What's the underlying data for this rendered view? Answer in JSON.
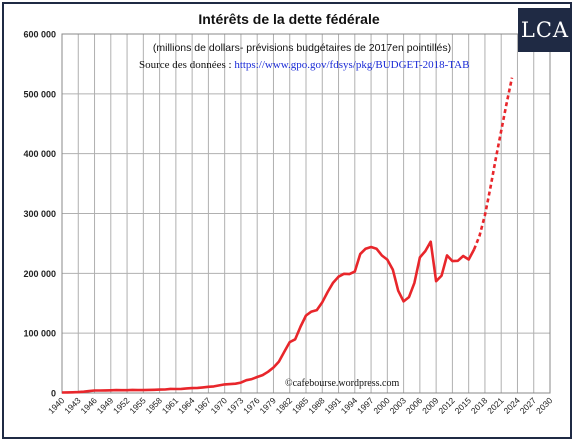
{
  "logo": {
    "text": "LCA"
  },
  "colors": {
    "frame": "#1f2a44",
    "series": "#e8262b",
    "link": "#1a2bd6",
    "grid": "#b0b0b0"
  },
  "chart_data": {
    "type": "line",
    "title": "Intérêts de la dette fédérale",
    "subtitle": "(millions de dollars- prévisions budgétaires de 2017en pointillés)",
    "source_prefix": "Source des données :",
    "source_url": "https://www.gpo.gov/fdsys/pkg/BUDGET-2018-TAB",
    "annotation": "©cafebourse.wordpress.com",
    "xlabel": "",
    "ylabel": "",
    "xlim": [
      1940,
      2030
    ],
    "ylim": [
      0,
      600000
    ],
    "grid": true,
    "x_ticks": [
      1940,
      1943,
      1946,
      1949,
      1952,
      1955,
      1958,
      1961,
      1964,
      1967,
      1970,
      1973,
      1976,
      1979,
      1982,
      1985,
      1988,
      1991,
      1994,
      1997,
      2000,
      2003,
      2006,
      2009,
      2012,
      2015,
      2018,
      2021,
      2024,
      2027,
      2030
    ],
    "y_ticks": [
      {
        "value": 0,
        "label": "0"
      },
      {
        "value": 100000,
        "label": "100 000"
      },
      {
        "value": 200000,
        "label": "200 000"
      },
      {
        "value": 300000,
        "label": "300 000"
      },
      {
        "value": 400000,
        "label": "400 000"
      },
      {
        "value": 500000,
        "label": "500 000"
      },
      {
        "value": 600000,
        "label": "600 000"
      }
    ],
    "series": [
      {
        "style": "solid",
        "points": [
          [
            1940,
            900
          ],
          [
            1941,
            1000
          ],
          [
            1942,
            1100
          ],
          [
            1943,
            1500
          ],
          [
            1944,
            2100
          ],
          [
            1945,
            3100
          ],
          [
            1946,
            4100
          ],
          [
            1947,
            4200
          ],
          [
            1948,
            4300
          ],
          [
            1949,
            4500
          ],
          [
            1950,
            4800
          ],
          [
            1951,
            4700
          ],
          [
            1952,
            4700
          ],
          [
            1953,
            5100
          ],
          [
            1954,
            4800
          ],
          [
            1955,
            4900
          ],
          [
            1956,
            5100
          ],
          [
            1957,
            5400
          ],
          [
            1958,
            5600
          ],
          [
            1959,
            5800
          ],
          [
            1960,
            6900
          ],
          [
            1961,
            6700
          ],
          [
            1962,
            6900
          ],
          [
            1963,
            7700
          ],
          [
            1964,
            8200
          ],
          [
            1965,
            8600
          ],
          [
            1966,
            9400
          ],
          [
            1967,
            10300
          ],
          [
            1968,
            11100
          ],
          [
            1969,
            12700
          ],
          [
            1970,
            14400
          ],
          [
            1971,
            14800
          ],
          [
            1972,
            15500
          ],
          [
            1973,
            17300
          ],
          [
            1974,
            21400
          ],
          [
            1975,
            23200
          ],
          [
            1976,
            26700
          ],
          [
            1977,
            29900
          ],
          [
            1978,
            35500
          ],
          [
            1979,
            42600
          ],
          [
            1980,
            52500
          ],
          [
            1981,
            68800
          ],
          [
            1982,
            85000
          ],
          [
            1983,
            89800
          ],
          [
            1984,
            111100
          ],
          [
            1985,
            129500
          ],
          [
            1986,
            136000
          ],
          [
            1987,
            138600
          ],
          [
            1988,
            151800
          ],
          [
            1989,
            169000
          ],
          [
            1990,
            184300
          ],
          [
            1991,
            194400
          ],
          [
            1992,
            199300
          ],
          [
            1993,
            198700
          ],
          [
            1994,
            202900
          ],
          [
            1995,
            232100
          ],
          [
            1996,
            241100
          ],
          [
            1997,
            244000
          ],
          [
            1998,
            241100
          ],
          [
            1999,
            229800
          ],
          [
            2000,
            222900
          ],
          [
            2001,
            206200
          ],
          [
            2002,
            171000
          ],
          [
            2003,
            153100
          ],
          [
            2004,
            160200
          ],
          [
            2005,
            184000
          ],
          [
            2006,
            226600
          ],
          [
            2007,
            237100
          ],
          [
            2008,
            252800
          ],
          [
            2009,
            186900
          ],
          [
            2010,
            196200
          ],
          [
            2011,
            230000
          ],
          [
            2012,
            220400
          ],
          [
            2013,
            220900
          ],
          [
            2014,
            228900
          ],
          [
            2015,
            223200
          ],
          [
            2016,
            240000
          ]
        ]
      },
      {
        "style": "dashed",
        "points": [
          [
            2016,
            240000
          ],
          [
            2017,
            262600
          ],
          [
            2018,
            297000
          ],
          [
            2019,
            343000
          ],
          [
            2020,
            392000
          ],
          [
            2021,
            438000
          ],
          [
            2022,
            484000
          ],
          [
            2023,
            527000
          ]
        ]
      }
    ]
  }
}
